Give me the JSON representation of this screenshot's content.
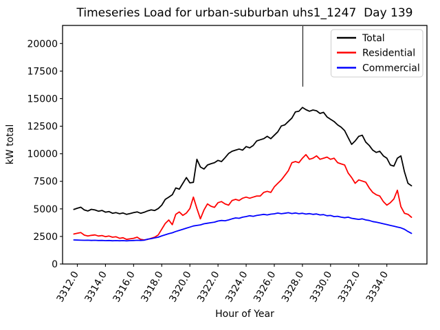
{
  "chart_data": {
    "type": "line",
    "title": "Timeseries Load for urban-suburban uhs1_1247  Day 139",
    "xlabel": "Hour of Year",
    "ylabel": "kW total",
    "xlim": [
      3310.95,
      3336.85
    ],
    "ylim": [
      0,
      21640
    ],
    "grid": false,
    "legend_position": "upper right",
    "x_start": 3311.75,
    "x_step": 0.25,
    "x_ticks": [
      {
        "value": 3312,
        "label": "3312.0"
      },
      {
        "value": 3314,
        "label": "3314.0"
      },
      {
        "value": 3316,
        "label": "3316.0"
      },
      {
        "value": 3318,
        "label": "3318.0"
      },
      {
        "value": 3320,
        "label": "3320.0"
      },
      {
        "value": 3322,
        "label": "3322.0"
      },
      {
        "value": 3324,
        "label": "3324.0"
      },
      {
        "value": 3326,
        "label": "3326.0"
      },
      {
        "value": 3328,
        "label": "3328.0"
      },
      {
        "value": 3330,
        "label": "3330.0"
      },
      {
        "value": 3332,
        "label": "3332.0"
      },
      {
        "value": 3334,
        "label": "3334.0"
      }
    ],
    "y_ticks": [
      {
        "value": 0,
        "label": "0"
      },
      {
        "value": 2500,
        "label": "2500"
      },
      {
        "value": 5000,
        "label": "5000"
      },
      {
        "value": 7500,
        "label": "7500"
      },
      {
        "value": 10000,
        "label": "10000"
      },
      {
        "value": 12500,
        "label": "12500"
      },
      {
        "value": 15000,
        "label": "15000"
      },
      {
        "value": 17500,
        "label": "17500"
      },
      {
        "value": 20000,
        "label": "20000"
      }
    ],
    "series": [
      {
        "name": "Total",
        "color": "#000000",
        "values": [
          4950,
          5060,
          5150,
          4900,
          4810,
          4960,
          4900,
          4790,
          4860,
          4700,
          4760,
          4600,
          4660,
          4560,
          4630,
          4500,
          4580,
          4660,
          4730,
          4600,
          4690,
          4820,
          4910,
          4850,
          5030,
          5340,
          5860,
          6070,
          6280,
          6900,
          6790,
          7320,
          7840,
          7360,
          7410,
          9500,
          8800,
          8610,
          8980,
          9100,
          9190,
          9400,
          9290,
          9650,
          10020,
          10230,
          10330,
          10430,
          10330,
          10650,
          10540,
          10750,
          11160,
          11270,
          11370,
          11580,
          11370,
          11680,
          11990,
          12520,
          12620,
          12930,
          13240,
          13800,
          13860,
          14200,
          14000,
          13860,
          13970,
          13900,
          13660,
          13760,
          13340,
          13130,
          12930,
          12620,
          12410,
          12100,
          11470,
          10850,
          11160,
          11580,
          11680,
          11060,
          10750,
          10330,
          10120,
          10230,
          9810,
          9600,
          8980,
          8880,
          9600,
          9810,
          8360,
          7320,
          7100
        ]
      },
      {
        "name": "Residential",
        "color": "#ff0000",
        "values": [
          2720,
          2790,
          2850,
          2620,
          2540,
          2600,
          2640,
          2540,
          2580,
          2480,
          2540,
          2430,
          2470,
          2330,
          2380,
          2230,
          2280,
          2330,
          2430,
          2230,
          2180,
          2230,
          2330,
          2430,
          2640,
          3160,
          3680,
          3990,
          3570,
          4510,
          4720,
          4410,
          4620,
          5030,
          6070,
          5030,
          4100,
          4900,
          5450,
          5240,
          5140,
          5560,
          5660,
          5450,
          5340,
          5760,
          5860,
          5760,
          5970,
          6070,
          5970,
          6070,
          6170,
          6170,
          6490,
          6590,
          6490,
          7000,
          7320,
          7630,
          8040,
          8460,
          9190,
          9290,
          9190,
          9600,
          9920,
          9500,
          9600,
          9810,
          9500,
          9600,
          9700,
          9500,
          9600,
          9190,
          9080,
          8980,
          8250,
          7840,
          7320,
          7630,
          7530,
          7420,
          6900,
          6490,
          6280,
          6170,
          5660,
          5340,
          5560,
          5900,
          6690,
          5200,
          4600,
          4510,
          4240
        ]
      },
      {
        "name": "Commercial",
        "color": "#0000ff",
        "values": [
          2180,
          2170,
          2160,
          2150,
          2160,
          2140,
          2150,
          2130,
          2140,
          2120,
          2130,
          2110,
          2120,
          2110,
          2120,
          2100,
          2120,
          2130,
          2150,
          2140,
          2160,
          2250,
          2300,
          2370,
          2430,
          2550,
          2650,
          2750,
          2830,
          2950,
          3050,
          3150,
          3250,
          3350,
          3450,
          3500,
          3550,
          3650,
          3700,
          3750,
          3800,
          3900,
          3950,
          3920,
          4000,
          4100,
          4180,
          4150,
          4250,
          4300,
          4380,
          4330,
          4400,
          4450,
          4500,
          4450,
          4520,
          4550,
          4620,
          4560,
          4600,
          4650,
          4580,
          4630,
          4560,
          4600,
          4530,
          4570,
          4500,
          4540,
          4450,
          4480,
          4380,
          4400,
          4300,
          4330,
          4250,
          4200,
          4250,
          4150,
          4100,
          4050,
          4100,
          4000,
          3950,
          3850,
          3800,
          3720,
          3650,
          3580,
          3500,
          3430,
          3350,
          3280,
          3150,
          2950,
          2780
        ]
      }
    ]
  }
}
